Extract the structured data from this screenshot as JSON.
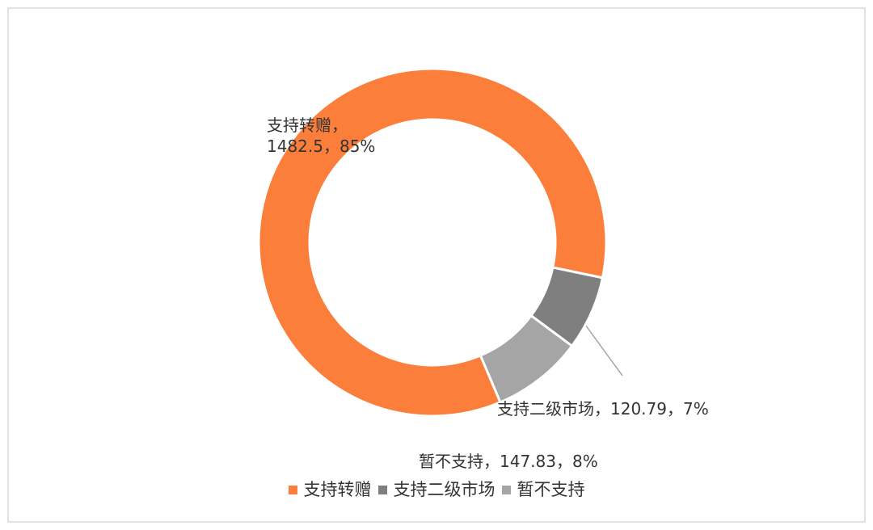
{
  "chart_data": {
    "type": "donut",
    "categories": [
      "支持转赠",
      "支持二级市场",
      "暂不支持"
    ],
    "values": [
      1482.5,
      120.79,
      147.83
    ],
    "value_labels": [
      "支持转赠，\n1482.5，85%",
      "支持二级市场，120.79，7%",
      "暂不支持，147.83，8%"
    ],
    "colors": [
      "#fb7f3b",
      "#7f7f7f",
      "#a5a5a5"
    ],
    "start_angle": 157,
    "legend": "bottom"
  }
}
